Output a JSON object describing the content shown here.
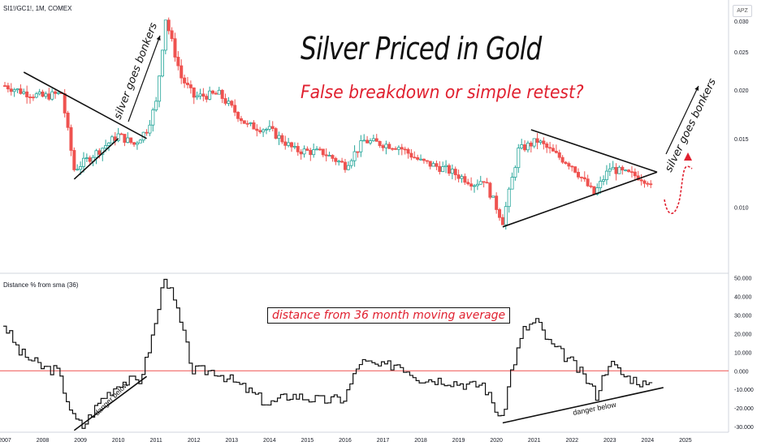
{
  "header": {
    "symbol": "SI1!/GC1!, 1M, COMEX",
    "scale_button": "APZ",
    "indicator_label": "Distance % from sma (36)"
  },
  "annotations": {
    "title": "Silver Priced in Gold",
    "subtitle": "False breakdown or simple retest?",
    "bonkers_left": "silver goes bonkers",
    "bonkers_right": "silver goes bonkers",
    "indicator_note": "distance from 36 month moving average",
    "danger_left": "danger below",
    "danger_right": "danger below"
  },
  "colors": {
    "up": "#26a69a",
    "down": "#ef5350",
    "highlight": "#e0202f",
    "line": "#111111"
  },
  "chart_data": [
    {
      "type": "candlestick",
      "title": "Silver Priced in Gold",
      "x_axis": {
        "type": "date",
        "range": [
          "2007-01",
          "2025-12"
        ],
        "tick_labels": [
          "2007",
          "2008",
          "2009",
          "2010",
          "2011",
          "2012",
          "2013",
          "2014",
          "2015",
          "2016",
          "2017",
          "2018",
          "2019",
          "2020",
          "2021",
          "2022",
          "2023",
          "2024",
          "2025"
        ]
      },
      "y_axis": {
        "scale": "log",
        "range": [
          0.0068,
          0.034
        ],
        "tick_labels": [
          "0.030",
          "0.025",
          "0.020",
          "0.015",
          "0.010"
        ],
        "tick_values": [
          0.03,
          0.025,
          0.02,
          0.015,
          0.01
        ]
      },
      "close_by_month": {
        "dates": [
          "2007-01",
          "2007-07",
          "2008-01",
          "2008-07",
          "2008-11",
          "2009-06",
          "2010-01",
          "2010-06",
          "2010-10",
          "2011-01",
          "2011-04",
          "2011-09",
          "2012-01",
          "2012-09",
          "2013-06",
          "2014-01",
          "2014-09",
          "2015-06",
          "2016-01",
          "2016-07",
          "2017-06",
          "2018-01",
          "2018-09",
          "2019-06",
          "2019-09",
          "2020-03",
          "2020-08",
          "2021-02",
          "2021-08",
          "2022-01",
          "2022-08",
          "2023-01",
          "2023-06",
          "2023-10",
          "2024-01",
          "2024-02"
        ],
        "values": [
          0.0205,
          0.0197,
          0.0192,
          0.0196,
          0.0125,
          0.0138,
          0.0153,
          0.0145,
          0.0158,
          0.0185,
          0.0305,
          0.0215,
          0.0192,
          0.0195,
          0.0162,
          0.0158,
          0.014,
          0.0138,
          0.0128,
          0.0148,
          0.0143,
          0.0131,
          0.0125,
          0.0115,
          0.0118,
          0.0092,
          0.014,
          0.0148,
          0.0136,
          0.0128,
          0.0108,
          0.0126,
          0.0122,
          0.012,
          0.0117,
          0.0112
        ]
      }
    },
    {
      "type": "line",
      "title": "Distance % from sma (36)",
      "x_axis": {
        "type": "date",
        "range": [
          "2007-01",
          "2025-12"
        ]
      },
      "y_axis": {
        "range": [
          -33,
          52
        ],
        "tick_labels": [
          "50.000",
          "40.000",
          "30.000",
          "20.000",
          "10.000",
          "0.000",
          "-10.000",
          "-20.000",
          "-30.000"
        ],
        "tick_values": [
          50,
          40,
          30,
          20,
          10,
          0,
          -10,
          -20,
          -30
        ]
      },
      "reference_line": 0,
      "series": [
        {
          "dates": [
            "2007-01",
            "2007-06",
            "2008-01",
            "2008-06",
            "2008-11",
            "2009-02",
            "2009-08",
            "2010-02",
            "2010-08",
            "2010-10",
            "2011-01",
            "2011-04",
            "2011-08",
            "2012-01",
            "2012-08",
            "2013-06",
            "2014-01",
            "2014-08",
            "2015-06",
            "2016-01",
            "2016-06",
            "2017-01",
            "2017-06",
            "2018-01",
            "2018-09",
            "2019-06",
            "2019-09",
            "2020-03",
            "2020-06",
            "2020-10",
            "2021-02",
            "2021-06",
            "2022-01",
            "2022-06",
            "2022-09",
            "2023-01",
            "2023-06",
            "2023-10",
            "2024-01",
            "2024-02"
          ],
          "values": [
            25,
            10,
            2,
            0,
            -25,
            -30,
            -15,
            -6,
            -5,
            5,
            25,
            52,
            32,
            0,
            0,
            -10,
            -18,
            -13,
            -16,
            -15,
            5,
            2,
            4,
            -4,
            -5,
            -8,
            -7,
            -27,
            0,
            22,
            27,
            15,
            5,
            -5,
            -13,
            5,
            -3,
            -5,
            -8,
            -9
          ]
        }
      ]
    }
  ]
}
